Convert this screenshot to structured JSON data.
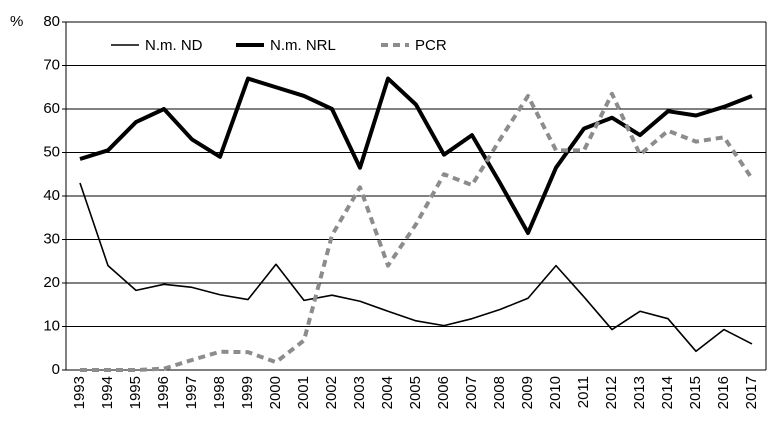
{
  "chart_data": {
    "type": "line",
    "y_label": "%",
    "categories": [
      "1993",
      "1994",
      "1995",
      "1996",
      "1997",
      "1998",
      "1999",
      "2000",
      "2001",
      "2002",
      "2003",
      "2004",
      "2005",
      "2006",
      "2007",
      "2008",
      "2009",
      "2010",
      "2011",
      "2012",
      "2013",
      "2014",
      "2015",
      "2016",
      "2017"
    ],
    "series": [
      {
        "name": "N.m. ND",
        "color": "#000000",
        "values": [
          43,
          24,
          18.3,
          19.7,
          19,
          17.3,
          16.2,
          24.3,
          16,
          17.2,
          15.8,
          13.5,
          11.3,
          10.2,
          11.8,
          13.9,
          16.5,
          24,
          16.8,
          9.3,
          13.5,
          11.8,
          4.3,
          9.3,
          6
        ]
      },
      {
        "name": "N.m. NRL",
        "color": "#000000",
        "values": [
          48.5,
          50.5,
          57,
          60,
          53,
          49,
          67,
          65,
          63,
          60,
          46.5,
          67,
          61,
          49.5,
          54,
          43,
          31.5,
          46.5,
          55.5,
          58,
          54,
          59.5,
          58.5,
          60.5,
          63
        ]
      },
      {
        "name": "PCR",
        "color": "#8c8c8c",
        "values": [
          0,
          0,
          0,
          0.3,
          2.3,
          4.2,
          4.1,
          1.8,
          6.8,
          31,
          42,
          24,
          33.5,
          45,
          42.5,
          53,
          63,
          50.5,
          50.5,
          63.5,
          49.5,
          55,
          52.5,
          53.5,
          44
        ]
      }
    ],
    "ylim": [
      0,
      80
    ],
    "yticks": [
      0,
      10,
      20,
      30,
      40,
      50,
      60,
      70,
      80
    ],
    "grid": true,
    "legend": "top-left"
  }
}
